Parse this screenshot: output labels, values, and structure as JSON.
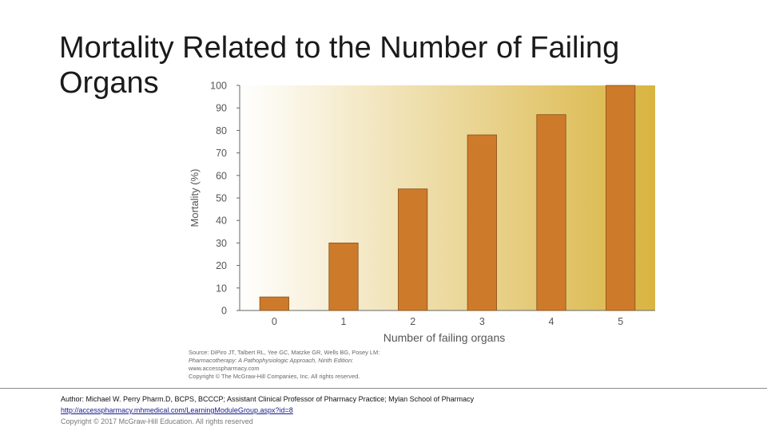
{
  "slide": {
    "title": "Mortality Related to the Number of Failing Organs"
  },
  "chart_data": {
    "type": "bar",
    "categories": [
      "0",
      "1",
      "2",
      "3",
      "4",
      "5"
    ],
    "values": [
      6,
      30,
      54,
      78,
      87,
      100
    ],
    "xlabel": "Number of failing organs",
    "ylabel": "Mortality (%)",
    "ylim": [
      0,
      100
    ],
    "yticks": [
      "0",
      "10",
      "20",
      "30",
      "40",
      "50",
      "60",
      "70",
      "80",
      "90",
      "100"
    ],
    "grid": false,
    "bar_color": "#cd7a2b",
    "background_gradient": [
      "#ffffff",
      "#d9b440"
    ]
  },
  "source": {
    "line1": "Source: DiPiro JT, Talbert RL, Yee GC, Matzke GR, Wells BG, Posey LM:",
    "line2": "Pharmacotherapy: A Pathophysiologic Approach, Ninth Edition:",
    "line3": "www.accesspharmacy.com",
    "line4": "Copyright © The McGraw-Hill Companies, Inc. All rights reserved."
  },
  "footer": {
    "author": "Author: Michael W. Perry Pharm.D, BCPS, BCCCP; Assistant Clinical Professor of Pharmacy Practice; Mylan School of Pharmacy",
    "link": "http://accesspharmacy.mhmedical.com/LearningModuleGroup.aspx?id=8",
    "copyright": "Copyright © 2017 McGraw-Hill Education. All rights reserved"
  }
}
